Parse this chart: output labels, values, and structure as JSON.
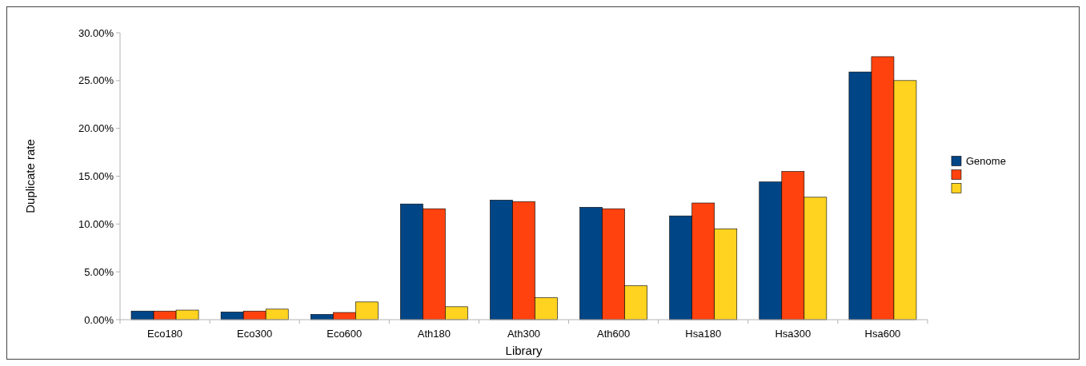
{
  "chart_data": {
    "type": "bar",
    "xlabel": "Library",
    "ylabel": "Duplicate rate",
    "categories": [
      "Eco180",
      "Eco300",
      "Eco600",
      "Ath180",
      "Ath300",
      "Ath600",
      "Hsa180",
      "Hsa300",
      "Hsa600"
    ],
    "series": [
      {
        "name": "Genome",
        "color": "#004586",
        "values": [
          0.9,
          0.8,
          0.55,
          12.1,
          12.5,
          11.75,
          10.85,
          14.4,
          25.9
        ]
      },
      {
        "color": "#ff420e",
        "values": [
          0.9,
          0.9,
          0.75,
          11.6,
          12.35,
          11.6,
          12.2,
          15.5,
          27.5
        ]
      },
      {
        "color": "#ffd320",
        "values": [
          1.0,
          1.1,
          1.85,
          1.35,
          2.3,
          3.55,
          9.5,
          12.8,
          25.0
        ]
      }
    ],
    "ylim": [
      0,
      30
    ],
    "yticks": [
      {
        "value": 0,
        "label": "0.00%"
      },
      {
        "value": 5,
        "label": "5.00%"
      },
      {
        "value": 10,
        "label": "10.00%"
      },
      {
        "value": 15,
        "label": "15.00%"
      },
      {
        "value": 20,
        "label": "20.00%"
      },
      {
        "value": 25,
        "label": "25.00%"
      },
      {
        "value": 30,
        "label": "30.00%"
      }
    ],
    "legend": "right",
    "grid": false
  }
}
